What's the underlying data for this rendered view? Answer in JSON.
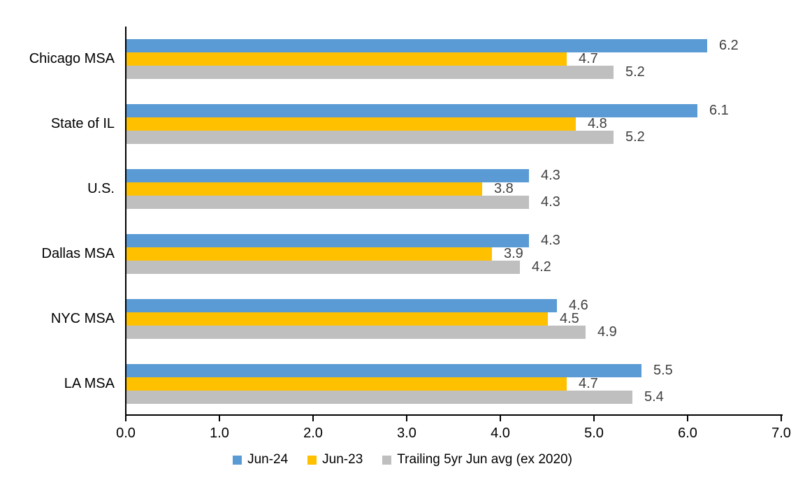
{
  "chart_data": {
    "type": "bar",
    "orientation": "horizontal",
    "title": "",
    "xlabel": "",
    "ylabel": "",
    "categories": [
      "Chicago MSA",
      "State of IL",
      "U.S.",
      "Dallas MSA",
      "NYC MSA",
      "LA MSA"
    ],
    "series": [
      {
        "name": "Jun-24",
        "color": "#5B9BD5",
        "values": [
          6.2,
          6.1,
          4.3,
          4.3,
          4.6,
          5.5
        ]
      },
      {
        "name": "Jun-23",
        "color": "#FFC000",
        "values": [
          4.7,
          4.8,
          3.8,
          3.9,
          4.5,
          4.7
        ]
      },
      {
        "name": "Trailing 5yr Jun avg (ex 2020)",
        "color": "#BFBFBF",
        "values": [
          5.2,
          5.2,
          4.3,
          4.2,
          4.9,
          5.4
        ]
      }
    ],
    "xlim": [
      0,
      7
    ],
    "xticks": [
      "0.0",
      "1.0",
      "2.0",
      "3.0",
      "4.0",
      "5.0",
      "6.0",
      "7.0"
    ],
    "grid": false,
    "data_labels": true,
    "legend_position": "bottom"
  },
  "style": {
    "axis_color": "#000000",
    "data_label_color": "#404040",
    "text_color": "#000000",
    "background": "#ffffff"
  }
}
